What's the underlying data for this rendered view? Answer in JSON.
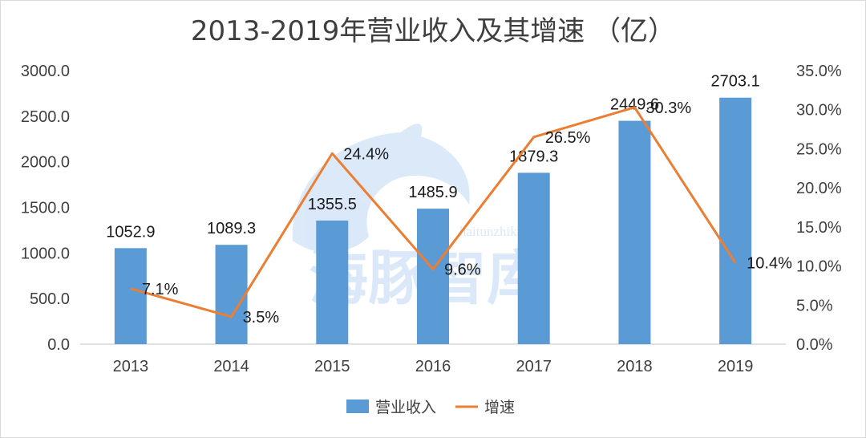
{
  "chart_data": {
    "type": "bar",
    "title": "2013-2019年营业收入及其增速 （亿）",
    "categories": [
      "2013",
      "2014",
      "2015",
      "2016",
      "2017",
      "2018",
      "2019"
    ],
    "series": [
      {
        "name": "营业收入",
        "type": "bar",
        "axis": "left",
        "color": "#5b9bd5",
        "values": [
          1052.9,
          1089.3,
          1355.5,
          1485.9,
          1879.3,
          2449.6,
          2703.1
        ],
        "labels": [
          "1052.9",
          "1089.3",
          "1355.5",
          "1485.9",
          "1879.3",
          "2449.6",
          "2703.1"
        ]
      },
      {
        "name": "增速",
        "type": "line",
        "axis": "right",
        "color": "#ed7d31",
        "values": [
          7.1,
          3.5,
          24.4,
          9.6,
          26.5,
          30.3,
          10.4
        ],
        "labels": [
          "7.1%",
          "3.5%",
          "24.4%",
          "9.6%",
          "26.5%",
          "30.3%",
          "10.4%"
        ]
      }
    ],
    "y_left": {
      "min": 0,
      "max": 3000,
      "ticks": [
        0,
        500,
        1000,
        1500,
        2000,
        2500,
        3000
      ],
      "tick_labels": [
        "0.0",
        "500.0",
        "1000.0",
        "1500.0",
        "2000.0",
        "2500.0",
        "3000.0"
      ]
    },
    "y_right": {
      "min": 0,
      "max": 35,
      "ticks": [
        0,
        5,
        10,
        15,
        20,
        25,
        30,
        35
      ],
      "tick_labels": [
        "0.0%",
        "5.0%",
        "10.0%",
        "15.0%",
        "20.0%",
        "25.0%",
        "30.0%",
        "35.0%"
      ]
    },
    "grid": false,
    "legend": {
      "position": "bottom",
      "entries": [
        "营业收入",
        "增速"
      ]
    },
    "watermark": {
      "text": "海豚智库",
      "url": "haitunzhiku.com",
      "color": "#4a90e2"
    }
  }
}
